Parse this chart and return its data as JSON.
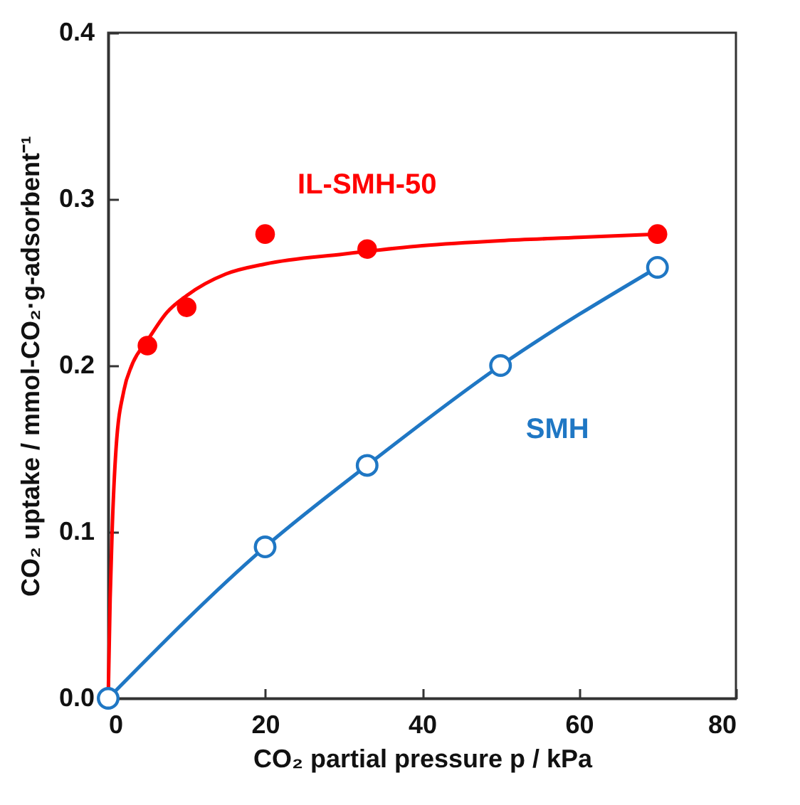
{
  "chart_data": {
    "type": "line",
    "xlabel": "CO₂ partial pressure p / kPa",
    "ylabel": "CO₂ uptake / mmol-CO₂·g-adsorbent⁻¹",
    "xlim": [
      0,
      80
    ],
    "xticks": [
      0,
      20,
      40,
      60,
      80
    ],
    "ylim": [
      0,
      0.4
    ],
    "yticks": [
      {
        "value": 0,
        "label": "0.0"
      },
      {
        "value": 0.1,
        "label": "0.1"
      },
      {
        "value": 0.2,
        "label": "0.2"
      },
      {
        "value": 0.3,
        "label": "0.3"
      },
      {
        "value": 0.4,
        "label": "0.4"
      }
    ],
    "grid": false,
    "series": [
      {
        "name": "IL-SMH-50",
        "type": "scatter",
        "marker": "circle",
        "color": "#ff0000",
        "x": [
          5,
          10,
          20,
          33,
          70
        ],
        "values": [
          0.212,
          0.235,
          0.279,
          0.27,
          0.279
        ]
      },
      {
        "marker": "none",
        "color": "#ff0000",
        "x": [
          0,
          0.25,
          0.5,
          1,
          2,
          3,
          5,
          7.5,
          10,
          15,
          20,
          30,
          40,
          50,
          60,
          70
        ],
        "values": [
          0,
          0.06,
          0.1,
          0.15,
          0.185,
          0.2,
          0.215,
          0.232,
          0.242,
          0.255,
          0.261,
          0.267,
          0.272,
          0.275,
          0.277,
          0.279
        ]
      },
      {
        "name": "SMH",
        "marker": "circle",
        "color": "#1f77c4",
        "x": [
          0,
          20,
          33,
          50,
          70
        ],
        "values": [
          0,
          0.091,
          0.14,
          0.2,
          0.259
        ]
      }
    ]
  }
}
